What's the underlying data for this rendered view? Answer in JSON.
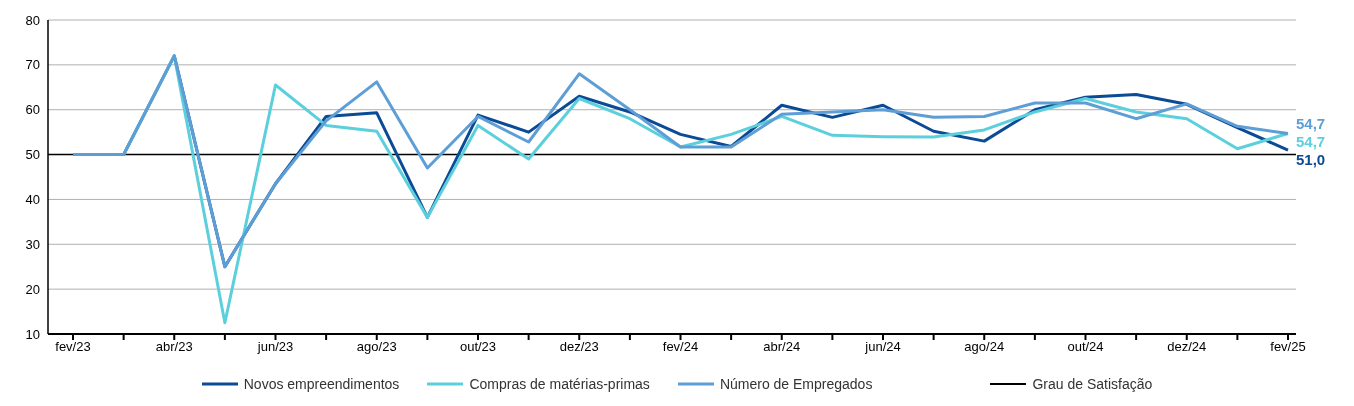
{
  "chart_data": {
    "type": "line",
    "categories": [
      "fev/23",
      null,
      "abr/23",
      null,
      "jun/23",
      null,
      "ago/23",
      null,
      "out/23",
      null,
      "dez/23",
      null,
      "fev/24",
      null,
      "abr/24",
      null,
      "jun/24",
      null,
      "ago/24",
      null,
      "out/24",
      null,
      "dez/24",
      null,
      "fev/25"
    ],
    "series": [
      {
        "name": "Novos empreendimentos",
        "color": "#0b4a94",
        "values": [
          50,
          50,
          72,
          25,
          43.5,
          58.5,
          59.3,
          36,
          58.8,
          55,
          63,
          59.5,
          54.5,
          51.8,
          61,
          58.3,
          61,
          55.2,
          53,
          60,
          62.8,
          63.4,
          61.2,
          56,
          51.0
        ],
        "value_labels": [
          null,
          null,
          null,
          null,
          null,
          null,
          null,
          null,
          null,
          null,
          null,
          null,
          null,
          null,
          null,
          null,
          null,
          null,
          null,
          null,
          null,
          null,
          null,
          null,
          "51,0"
        ]
      },
      {
        "name": "Compras de matérias-primas",
        "color": "#5ccfdd",
        "values": [
          50,
          50,
          72,
          12.5,
          65.5,
          56.5,
          55.2,
          36,
          56.5,
          49,
          62.5,
          58,
          51.7,
          54.5,
          58.5,
          54.3,
          54,
          53.9,
          55.5,
          59.5,
          62.5,
          59.5,
          58,
          51.3,
          54.7
        ],
        "value_labels": [
          null,
          null,
          null,
          null,
          null,
          null,
          null,
          null,
          null,
          null,
          null,
          null,
          null,
          null,
          null,
          null,
          null,
          null,
          null,
          null,
          null,
          null,
          null,
          null,
          "54,7"
        ]
      },
      {
        "name": "Número de Empregados",
        "color": "#5e9ed6",
        "values": [
          50,
          50,
          72,
          25,
          43.5,
          57.5,
          66.2,
          47,
          58.5,
          52.8,
          68,
          60,
          51.7,
          51.7,
          59,
          59.5,
          60,
          58.3,
          58.5,
          61.5,
          61.5,
          58,
          61.3,
          56.3,
          54.7
        ],
        "value_labels": [
          null,
          null,
          null,
          null,
          null,
          null,
          null,
          null,
          null,
          null,
          null,
          null,
          null,
          null,
          null,
          null,
          null,
          null,
          null,
          null,
          null,
          null,
          null,
          null,
          "54,7"
        ]
      }
    ],
    "ref_lines": [
      {
        "axis": "y",
        "value": 50,
        "label": "Grau de Satisfação",
        "color": "#000000"
      }
    ],
    "ylim": [
      10,
      80
    ],
    "yticks": [
      10,
      20,
      30,
      40,
      50,
      60,
      70,
      80
    ],
    "grid": "y",
    "legend": "bottom",
    "marker": "none",
    "line_style": "solid"
  }
}
